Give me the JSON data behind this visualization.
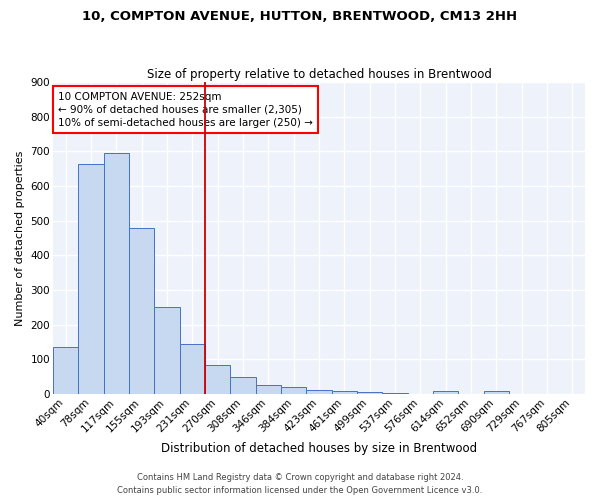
{
  "title1": "10, COMPTON AVENUE, HUTTON, BRENTWOOD, CM13 2HH",
  "title2": "Size of property relative to detached houses in Brentwood",
  "xlabel": "Distribution of detached houses by size in Brentwood",
  "ylabel": "Number of detached properties",
  "categories": [
    "40sqm",
    "78sqm",
    "117sqm",
    "155sqm",
    "193sqm",
    "231sqm",
    "270sqm",
    "308sqm",
    "346sqm",
    "384sqm",
    "423sqm",
    "461sqm",
    "499sqm",
    "537sqm",
    "576sqm",
    "614sqm",
    "652sqm",
    "690sqm",
    "729sqm",
    "767sqm",
    "805sqm"
  ],
  "values": [
    135,
    665,
    695,
    480,
    250,
    145,
    83,
    50,
    25,
    20,
    13,
    8,
    5,
    4,
    0,
    8,
    0,
    10,
    0,
    0,
    0
  ],
  "bar_color": "#c6d9f0",
  "bar_edge_color": "#4472c4",
  "vline_color": "#cc0000",
  "vline_pos": 5.5,
  "annotation_line1": "10 COMPTON AVENUE: 252sqm",
  "annotation_line2": "← 90% of detached houses are smaller (2,305)",
  "annotation_line3": "10% of semi-detached houses are larger (250) →",
  "annotation_box_color": "white",
  "annotation_box_edge_color": "red",
  "annotation_fontsize": 7.5,
  "bg_color": "#eef2fa",
  "grid_color": "#d0d8e8",
  "footer1": "Contains HM Land Registry data © Crown copyright and database right 2024.",
  "footer2": "Contains public sector information licensed under the Open Government Licence v3.0.",
  "ylim": [
    0,
    900
  ],
  "yticks": [
    0,
    100,
    200,
    300,
    400,
    500,
    600,
    700,
    800,
    900
  ],
  "title1_fontsize": 9.5,
  "title2_fontsize": 8.5,
  "xlabel_fontsize": 8.5,
  "ylabel_fontsize": 8.0,
  "tick_fontsize": 7.5
}
